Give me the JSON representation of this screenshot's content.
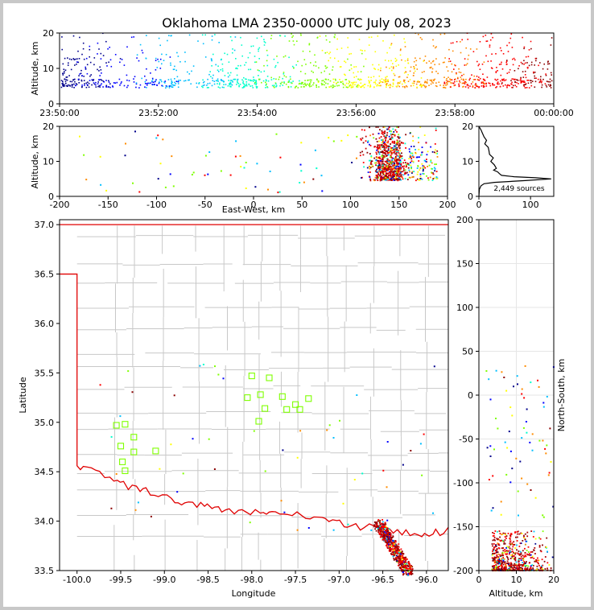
{
  "chart_data": [
    {
      "panel": "time-altitude",
      "type": "scatter",
      "title": "Oklahoma LMA 2350-0000 UTC July 08, 2023",
      "xlabel": "",
      "ylabel": "Altitude, km",
      "xlim": [
        "23:50:00",
        "00:00:00"
      ],
      "ylim": [
        0,
        20
      ],
      "xticks": [
        "23:50:00",
        "23:52:00",
        "23:54:00",
        "23:56:00",
        "23:58:00",
        "00:00:00"
      ],
      "yticks": [
        "0",
        "10",
        "20"
      ],
      "color_by": "time",
      "colormap": [
        "#00008b",
        "#0000ff",
        "#00bfff",
        "#00ffcc",
        "#7fff00",
        "#ffff00",
        "#ff8c00",
        "#ff0000",
        "#8b0000"
      ],
      "marker": "dot"
    },
    {
      "panel": "east-west-altitude",
      "type": "scatter",
      "xlabel": "East-West, km",
      "ylabel": "Altitude, km",
      "xlim": [
        -200,
        200
      ],
      "ylim": [
        0,
        20
      ],
      "xticks": [
        "-200",
        "-150",
        "-100",
        "-50",
        "0",
        "50",
        "100",
        "150",
        "200"
      ],
      "yticks": [
        "0",
        "10",
        "20"
      ],
      "cluster_x": [
        110,
        190
      ],
      "cluster_alt": [
        3,
        20
      ]
    },
    {
      "panel": "altitude-histogram",
      "type": "line",
      "annotation": "2,449 sources",
      "xlim": [
        0,
        145
      ],
      "ylim": [
        0,
        20
      ],
      "xticks": [
        "0",
        "100"
      ],
      "yticks": [
        "0",
        "10",
        "20"
      ],
      "altitude": [
        0,
        2,
        3,
        3.6,
        4,
        4.5,
        5,
        5.3,
        5.6,
        6,
        6.5,
        7,
        7.5,
        8,
        9,
        10,
        11,
        12,
        13,
        14,
        15,
        16,
        17,
        18,
        19,
        20
      ],
      "count": [
        0,
        1,
        4,
        10,
        30,
        90,
        140,
        110,
        70,
        45,
        38,
        34,
        32,
        30,
        28,
        26,
        24,
        22,
        20,
        17,
        15,
        12,
        10,
        7,
        4,
        0
      ]
    },
    {
      "panel": "plan-view",
      "type": "map",
      "xlabel": "Longitude",
      "ylabel": "Latitude",
      "xlim": [
        -100.2,
        -95.75
      ],
      "ylim": [
        33.5,
        37.05
      ],
      "xticks": [
        "-100.0",
        "-99.5",
        "-99.0",
        "-98.5",
        "-98.0",
        "-97.5",
        "-97.0",
        "-96.5",
        "-96.0"
      ],
      "yticks": [
        "33.5",
        "34.0",
        "34.5",
        "35.0",
        "35.5",
        "36.0",
        "36.5",
        "37.0"
      ],
      "stations_lonlat": [
        [
          -99.55,
          34.97
        ],
        [
          -99.45,
          34.98
        ],
        [
          -99.35,
          34.85
        ],
        [
          -99.5,
          34.76
        ],
        [
          -99.35,
          34.7
        ],
        [
          -99.1,
          34.71
        ],
        [
          -99.48,
          34.6
        ],
        [
          -99.45,
          34.51
        ],
        [
          -98.0,
          35.47
        ],
        [
          -97.8,
          35.45
        ],
        [
          -97.9,
          35.28
        ],
        [
          -98.05,
          35.25
        ],
        [
          -97.85,
          35.14
        ],
        [
          -97.92,
          35.01
        ],
        [
          -97.65,
          35.26
        ],
        [
          -97.6,
          35.13
        ],
        [
          -97.5,
          35.18
        ],
        [
          -97.45,
          35.13
        ],
        [
          -97.35,
          35.24
        ]
      ],
      "station_color": "#7fff00"
    },
    {
      "panel": "north-south-altitude",
      "type": "scatter",
      "xlabel": "Altitude, km",
      "ylabel": "North-South, km",
      "xlim": [
        0,
        20
      ],
      "ylim": [
        -200,
        200
      ],
      "xticks": [
        "0",
        "10",
        "20"
      ],
      "yticks": [
        "-200",
        "-150",
        "-100",
        "-50",
        "0",
        "50",
        "100",
        "150",
        "200"
      ]
    }
  ]
}
